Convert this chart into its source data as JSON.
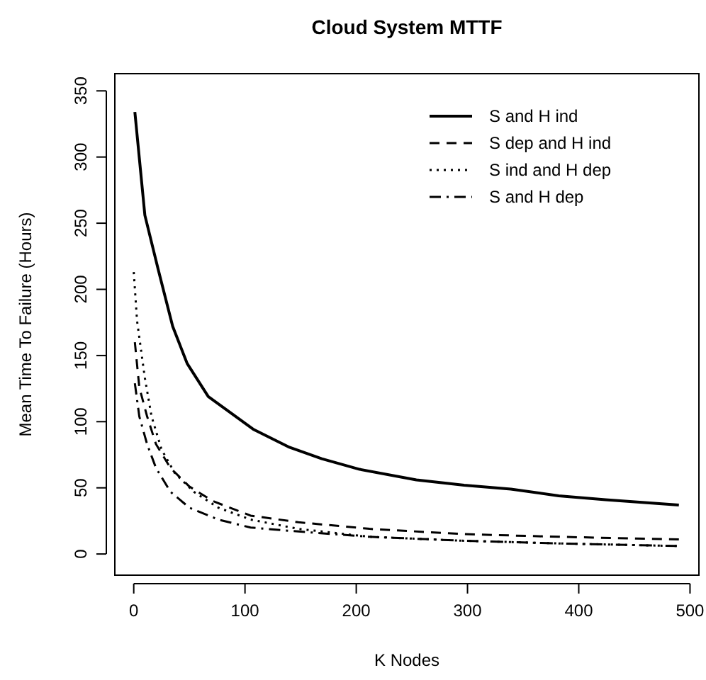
{
  "chart_data": {
    "type": "line",
    "title": "Cloud System MTTF",
    "xlabel": "K Nodes",
    "ylabel": "Mean Time To Failure (Hours)",
    "xlim": [
      -17,
      508
    ],
    "ylim": [
      -16,
      363
    ],
    "xticks": [
      0,
      100,
      200,
      300,
      400,
      500
    ],
    "yticks": [
      0,
      50,
      100,
      150,
      200,
      250,
      300,
      350
    ],
    "legend": "top right",
    "grid": false,
    "series": [
      {
        "name": "S and H ind",
        "color": "#000000",
        "line_style": "solid",
        "x": [
          1,
          10,
          22,
          35,
          48,
          67,
          108,
          139,
          169,
          203,
          254,
          297,
          339,
          382,
          424,
          490
        ],
        "values": [
          334,
          256,
          215,
          172,
          144,
          119,
          94,
          81,
          72,
          64,
          56,
          52,
          49,
          44,
          41,
          37
        ]
      },
      {
        "name": "S dep and H ind",
        "color": "#000000",
        "line_style": "dashed",
        "x": [
          1,
          5,
          12,
          20,
          33,
          50,
          71,
          105,
          148,
          212,
          297,
          382,
          490
        ],
        "values": [
          160,
          126,
          104,
          83,
          65,
          51,
          40,
          29,
          24,
          19,
          15,
          13,
          11
        ]
      },
      {
        "name": "S ind and H dep",
        "color": "#000000",
        "line_style": "dotted",
        "x": [
          0,
          3,
          10,
          16,
          25,
          37,
          54,
          76,
          105,
          148,
          212,
          297,
          382,
          490
        ],
        "values": [
          213,
          176,
          133,
          104,
          79,
          61,
          47,
          35,
          26,
          19,
          13,
          10,
          8,
          6
        ]
      },
      {
        "name": "S and H dep",
        "color": "#000000",
        "line_style": "dashdot",
        "x": [
          1,
          5,
          12,
          20,
          33,
          50,
          76,
          105,
          148,
          212,
          297,
          382,
          490
        ],
        "values": [
          129,
          104,
          83,
          65,
          47,
          35,
          26,
          20,
          17,
          13,
          10,
          8,
          6
        ]
      }
    ]
  }
}
